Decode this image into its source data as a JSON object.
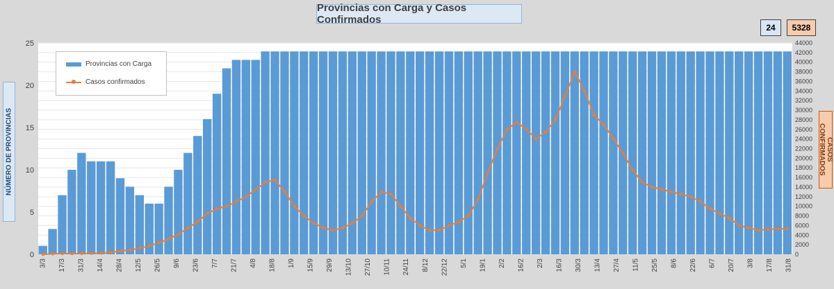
{
  "title": "Provincias con Carga y Casos Confirmados",
  "kpis": {
    "provincias": "24",
    "casos": "5328"
  },
  "axis_labels": {
    "left": "NÚMERO DE PROVINCIAS",
    "right": "CASOS CONFIRMADOS"
  },
  "legend": {
    "bars": "Provincias con Carga",
    "line": "Casos confirmados"
  },
  "colors": {
    "bars": "#5b9bd5",
    "line": "#ed7d31",
    "background": "#d9d9d9",
    "plot": "#ffffff"
  },
  "chart_data": {
    "type": "bar+line",
    "x_ticks": [
      "3/3",
      "17/3",
      "31/3",
      "14/4",
      "28/4",
      "12/5",
      "26/5",
      "9/6",
      "23/6",
      "7/7",
      "21/7",
      "4/8",
      "18/8",
      "1/9",
      "15/9",
      "29/9",
      "13/10",
      "27/10",
      "10/11",
      "24/11",
      "8/12",
      "22/12",
      "5/1",
      "19/1",
      "2/2",
      "16/2",
      "2/3",
      "16/3",
      "30/3",
      "13/4",
      "27/4",
      "11/5",
      "25/5",
      "8/6",
      "22/6",
      "6/7",
      "20/7",
      "3/8",
      "17/8",
      "31/8"
    ],
    "y_left": {
      "min": 0,
      "max": 25,
      "ticks": [
        0,
        5,
        10,
        15,
        20,
        25
      ]
    },
    "y_right": {
      "min": 0,
      "max": 44000,
      "ticks": [
        0,
        2000,
        4000,
        6000,
        8000,
        10000,
        12000,
        14000,
        16000,
        18000,
        20000,
        22000,
        24000,
        26000,
        28000,
        30000,
        32000,
        34000,
        36000,
        38000,
        40000,
        42000,
        44000
      ]
    },
    "provinces_weekly": [
      1,
      3,
      7,
      10,
      12,
      11,
      11,
      11,
      9,
      8,
      7,
      6,
      6,
      8,
      10,
      12,
      14,
      16,
      19,
      22,
      23,
      23,
      23,
      24,
      24,
      24,
      24,
      24,
      24,
      24,
      24,
      24,
      24,
      24,
      24,
      24,
      24,
      24,
      24,
      24,
      24,
      24,
      24,
      24,
      24,
      24,
      24,
      24,
      24,
      24,
      24,
      24,
      24,
      24,
      24,
      24,
      24,
      24,
      24,
      24,
      24,
      24,
      24,
      24,
      24,
      24,
      24,
      24,
      24,
      24,
      24,
      24,
      24,
      24,
      24,
      24,
      24,
      24
    ],
    "cases_weekly": [
      5,
      100,
      150,
      150,
      160,
      200,
      250,
      400,
      700,
      900,
      1300,
      1800,
      2400,
      3200,
      4200,
      5500,
      6800,
      8500,
      9500,
      10000,
      11000,
      12000,
      13500,
      15000,
      15500,
      13000,
      10000,
      8000,
      6500,
      5500,
      5000,
      5500,
      6500,
      8000,
      11000,
      13000,
      12500,
      10000,
      7500,
      6000,
      5000,
      5000,
      6000,
      6800,
      8000,
      11500,
      17000,
      22000,
      26000,
      27500,
      26000,
      24000,
      25500,
      28000,
      33000,
      38000,
      34000,
      29000,
      27000,
      24000,
      21000,
      17500,
      15000,
      14000,
      13500,
      13000,
      12500,
      12000,
      11000,
      9500,
      8500,
      7500,
      6000,
      5500,
      5000,
      5200,
      5300,
      5328
    ]
  }
}
